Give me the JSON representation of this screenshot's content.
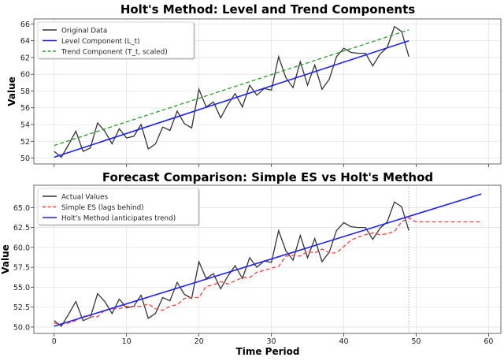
{
  "chart_data": [
    {
      "type": "line",
      "title": "Holt's Method: Level and Trend Components",
      "xlabel": "",
      "ylabel": "Value",
      "xlim": [
        -2.8,
        61.7
      ],
      "ylim": [
        49.3,
        66.6
      ],
      "xticks": [
        0,
        10,
        20,
        30,
        40,
        50,
        60
      ],
      "yticks": [
        "50",
        "52",
        "54",
        "56",
        "58",
        "60",
        "62",
        "64",
        "66"
      ],
      "grid": true,
      "legend": "top-left",
      "series": [
        {
          "name": "Original Data",
          "color": "#333333",
          "style": "solid",
          "x": [
            0,
            1,
            2,
            3,
            4,
            5,
            6,
            7,
            8,
            9,
            10,
            11,
            12,
            13,
            14,
            15,
            16,
            17,
            18,
            19,
            20,
            21,
            22,
            23,
            24,
            25,
            26,
            27,
            28,
            29,
            30,
            31,
            32,
            33,
            34,
            35,
            36,
            37,
            38,
            39,
            40,
            41,
            42,
            43,
            44,
            45,
            46,
            47,
            48,
            49
          ],
          "y": [
            50.8,
            50.1,
            51.6,
            53.2,
            50.8,
            51.2,
            54.2,
            53.2,
            51.7,
            53.5,
            52.4,
            52.6,
            54.0,
            51.1,
            51.7,
            53.7,
            53.3,
            55.6,
            54.1,
            53.6,
            58.2,
            56.1,
            56.7,
            54.8,
            56.4,
            57.7,
            56.1,
            58.7,
            57.5,
            58.3,
            58.1,
            62.1,
            59.6,
            58.4,
            61.5,
            58.7,
            61.1,
            58.2,
            59.4,
            62.1,
            63.1,
            62.6,
            62.5,
            62.5,
            61.0,
            62.4,
            63.2,
            65.7,
            65.1,
            62.1
          ]
        },
        {
          "name": "Level Component (L_t)",
          "color": "#1f1ff5",
          "style": "solid",
          "x": [
            0,
            49
          ],
          "y": [
            50.1,
            64.0
          ]
        },
        {
          "name": "Trend Component (T_t, scaled)",
          "color": "#2e9a2e",
          "style": "dashed",
          "x": [
            0,
            49
          ],
          "y": [
            51.5,
            65.3
          ]
        }
      ]
    },
    {
      "type": "line",
      "title": "Forecast Comparison: Simple ES vs Holt's Method",
      "xlabel": "Time Period",
      "ylabel": "Value",
      "xlim": [
        -2.8,
        61.7
      ],
      "ylim": [
        49.2,
        67.8
      ],
      "xticks": [
        "0",
        "10",
        "20",
        "30",
        "40",
        "50",
        "60"
      ],
      "yticks": [
        "50.0",
        "52.5",
        "55.0",
        "57.5",
        "60.0",
        "62.5",
        "65.0"
      ],
      "grid": true,
      "legend": "top-left",
      "vline_x": 49,
      "series": [
        {
          "name": "Actual Values",
          "color": "#333333",
          "style": "solid",
          "x": [
            0,
            1,
            2,
            3,
            4,
            5,
            6,
            7,
            8,
            9,
            10,
            11,
            12,
            13,
            14,
            15,
            16,
            17,
            18,
            19,
            20,
            21,
            22,
            23,
            24,
            25,
            26,
            27,
            28,
            29,
            30,
            31,
            32,
            33,
            34,
            35,
            36,
            37,
            38,
            39,
            40,
            41,
            42,
            43,
            44,
            45,
            46,
            47,
            48,
            49
          ],
          "y": [
            50.8,
            50.1,
            51.6,
            53.2,
            50.8,
            51.2,
            54.2,
            53.2,
            51.7,
            53.5,
            52.4,
            52.6,
            54.0,
            51.1,
            51.7,
            53.7,
            53.3,
            55.6,
            54.1,
            53.6,
            58.2,
            56.1,
            56.7,
            54.8,
            56.4,
            57.7,
            56.1,
            58.7,
            57.5,
            58.3,
            58.1,
            62.1,
            59.6,
            58.4,
            61.5,
            58.7,
            61.1,
            58.2,
            59.4,
            62.1,
            63.1,
            62.6,
            62.5,
            62.5,
            61.0,
            62.4,
            63.2,
            65.7,
            65.1,
            62.1
          ]
        },
        {
          "name": "Simple ES (lags behind)",
          "color": "#ff4040",
          "style": "dashed",
          "x": [
            0,
            1,
            2,
            3,
            4,
            5,
            6,
            7,
            8,
            9,
            10,
            11,
            12,
            13,
            14,
            15,
            16,
            17,
            18,
            19,
            20,
            21,
            22,
            23,
            24,
            25,
            26,
            27,
            28,
            29,
            30,
            31,
            32,
            33,
            34,
            35,
            36,
            37,
            38,
            39,
            40,
            41,
            42,
            43,
            44,
            45,
            46,
            47,
            48,
            49,
            50,
            59
          ],
          "y": [
            50.5,
            50.4,
            50.5,
            50.8,
            51.4,
            51.3,
            51.3,
            52.1,
            52.3,
            52.3,
            52.6,
            52.6,
            52.6,
            52.9,
            52.3,
            52.1,
            52.6,
            52.8,
            53.6,
            53.7,
            53.7,
            55.1,
            55.3,
            55.7,
            55.4,
            55.8,
            56.2,
            56.2,
            56.9,
            57.1,
            57.4,
            57.6,
            58.9,
            59.0,
            58.9,
            59.5,
            59.3,
            59.8,
            59.3,
            59.3,
            60.1,
            60.9,
            61.3,
            61.6,
            61.8,
            61.6,
            61.7,
            62.0,
            63.2,
            63.7,
            63.2,
            63.2
          ]
        },
        {
          "name": "Holt's Method (anticipates trend)",
          "color": "#1f1ff5",
          "style": "solid",
          "x": [
            0,
            59
          ],
          "y": [
            50.1,
            66.7
          ]
        }
      ]
    }
  ]
}
